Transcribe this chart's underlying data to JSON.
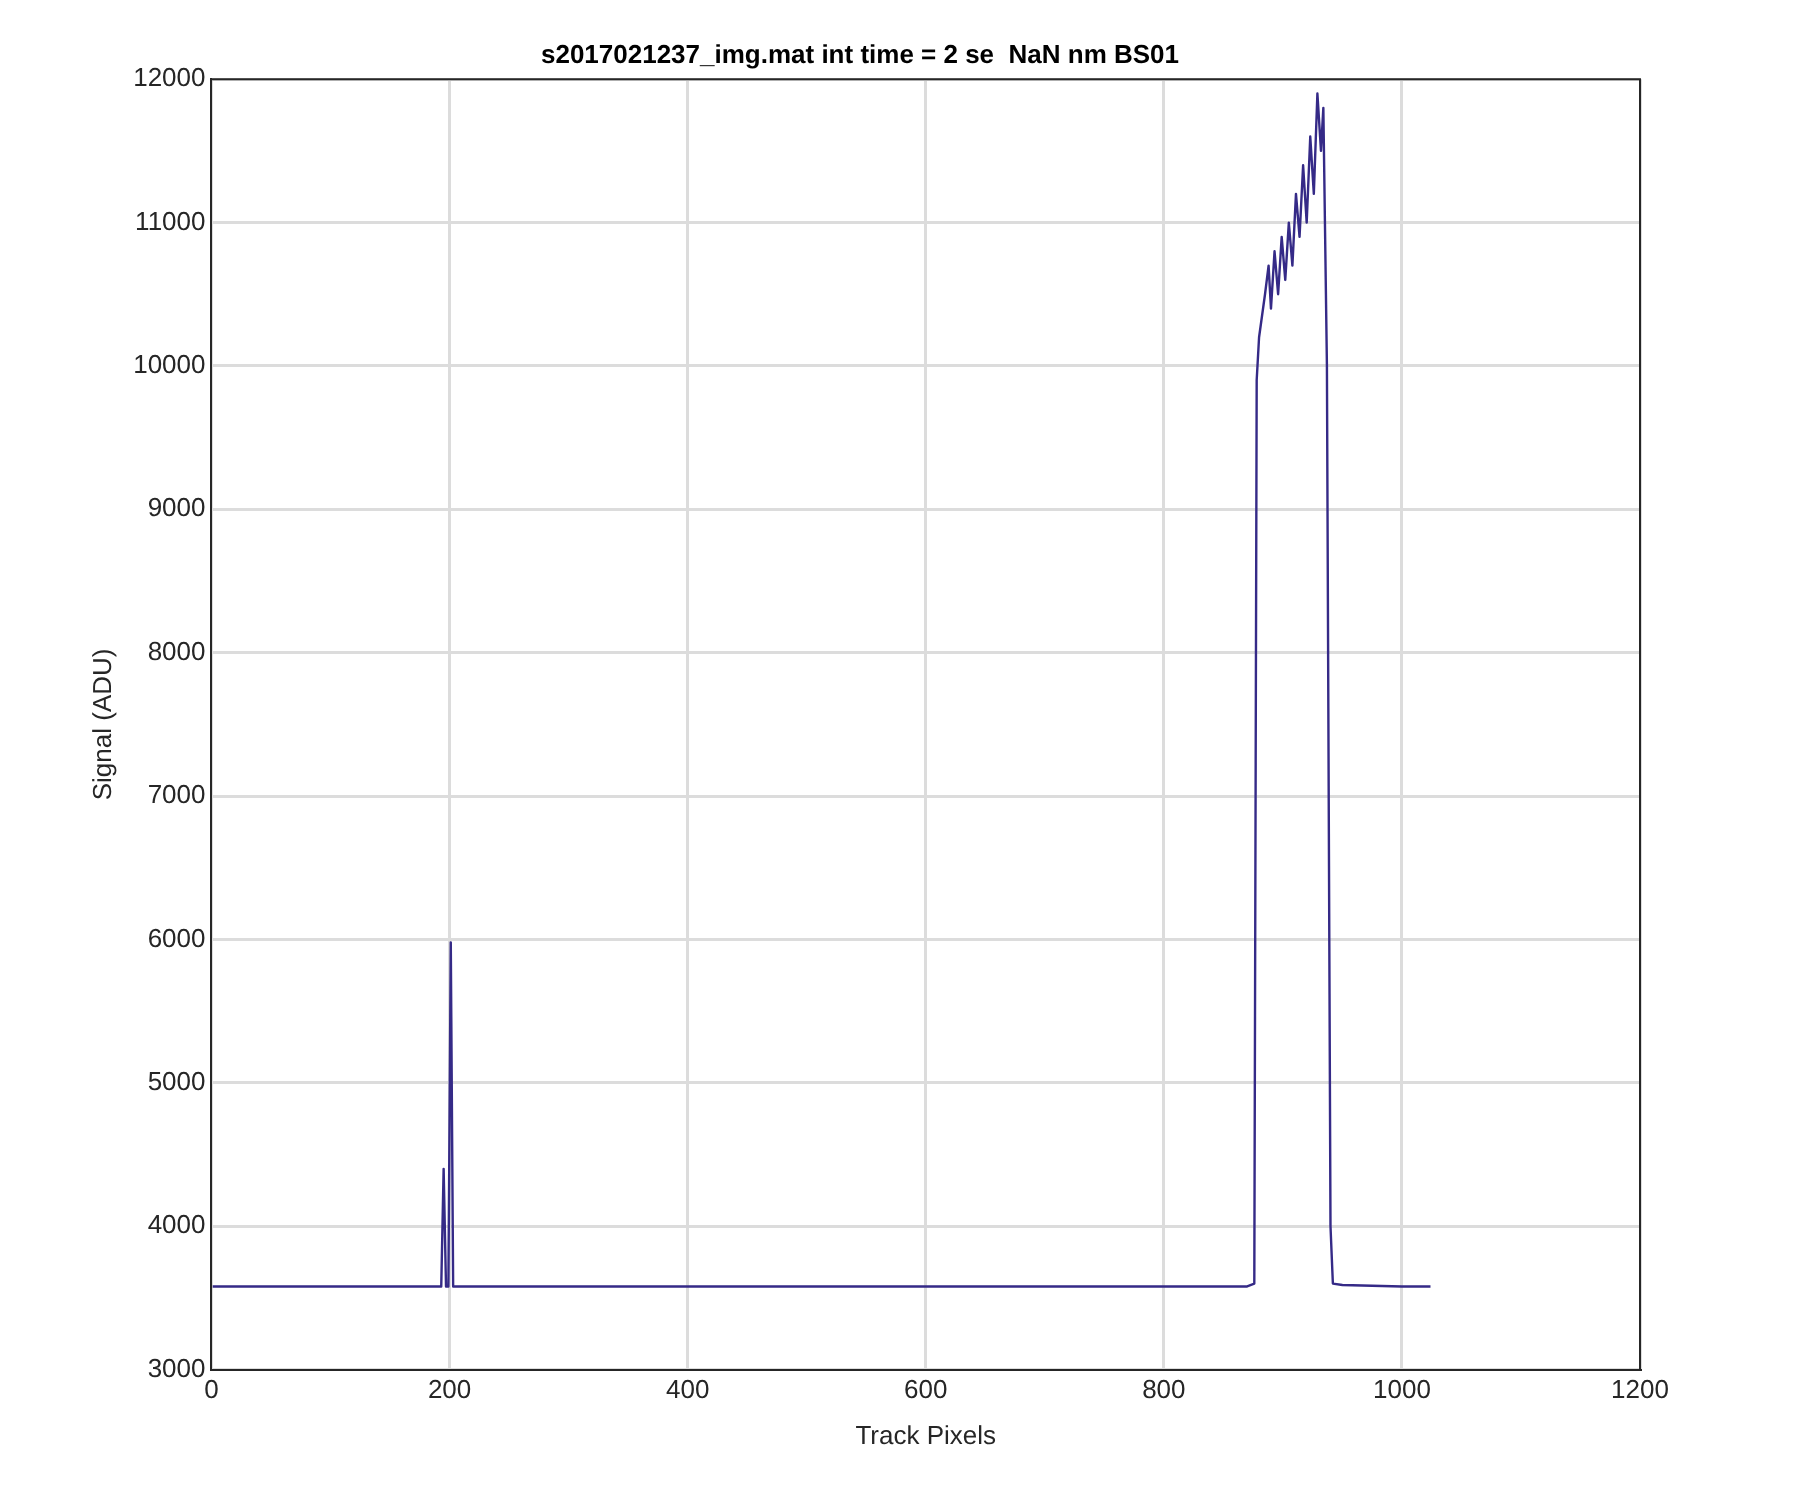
{
  "chart_data": {
    "type": "line",
    "title": "s2017021237_img.mat int time = 2 se  NaN nm BS01",
    "xlabel": "Track Pixels",
    "ylabel": "Signal (ADU)",
    "series": [
      {
        "color": "#352a87",
        "x": [
          1,
          100,
          190,
          193,
          195,
          197,
          199,
          201,
          203,
          205,
          300,
          400,
          500,
          600,
          700,
          800,
          870,
          876,
          878,
          880,
          885,
          888,
          890,
          893,
          896,
          899,
          902,
          905,
          908,
          911,
          914,
          917,
          920,
          923,
          926,
          929,
          932,
          934,
          937,
          940,
          942,
          950,
          1000,
          1024
        ],
        "values": [
          3580,
          3580,
          3580,
          3580,
          4400,
          3580,
          3580,
          5980,
          3580,
          3580,
          3580,
          3580,
          3580,
          3580,
          3580,
          3580,
          3580,
          3600,
          9900,
          10200,
          10500,
          10700,
          10400,
          10800,
          10500,
          10900,
          10600,
          11000,
          10700,
          11200,
          10900,
          11400,
          11000,
          11600,
          11200,
          11900,
          11500,
          11800,
          10000,
          4000,
          3600,
          3590,
          3580,
          3580
        ]
      }
    ],
    "xlim": [
      0,
      1200
    ],
    "xticks": [
      0,
      200,
      400,
      600,
      800,
      1000,
      1200
    ],
    "ylim": [
      3000,
      12000
    ],
    "yticks": [
      3000,
      4000,
      5000,
      6000,
      7000,
      8000,
      9000,
      10000,
      11000,
      12000
    ],
    "grid": true,
    "legend": false,
    "marker": "none",
    "line_style": "solid"
  }
}
